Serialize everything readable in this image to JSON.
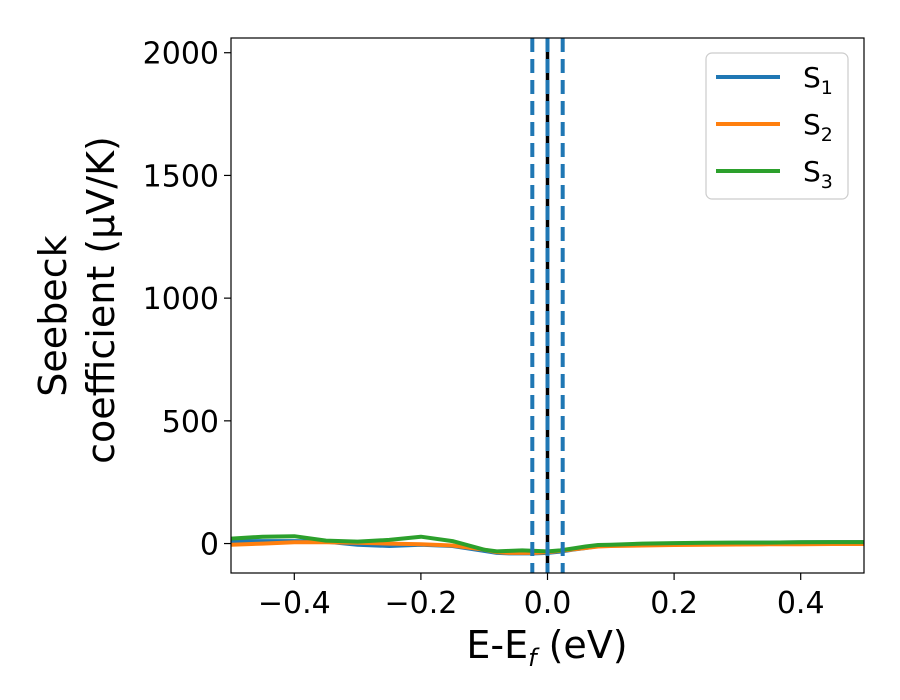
{
  "chart_data": {
    "type": "line",
    "xlabel": {
      "main": "E-E",
      "sub": "f",
      "suffix": " (eV)"
    },
    "ylabel": {
      "line1": "Seebeck",
      "line2": "coefficient  (μV/K)"
    },
    "xlim": [
      -0.5,
      0.5
    ],
    "ylim": [
      -120,
      2060
    ],
    "xticks": [
      -0.4,
      -0.2,
      0.0,
      0.2,
      0.4
    ],
    "xtick_labels": [
      "−0.4",
      "−0.2",
      "0.0",
      "0.2",
      "0.4"
    ],
    "yticks": [
      0,
      500,
      1000,
      1500,
      2000
    ],
    "ytick_labels": [
      "0",
      "500",
      "1000",
      "1500",
      "2000"
    ],
    "grid": false,
    "legend": {
      "position": "top-right"
    },
    "series": [
      {
        "name": "S",
        "sub": "1",
        "color": "#1f77b4",
        "x": [
          -0.5,
          -0.45,
          -0.4,
          -0.35,
          -0.3,
          -0.25,
          -0.2,
          -0.15,
          -0.1,
          -0.08,
          -0.06,
          -0.04,
          -0.02,
          0.0,
          0.02,
          0.04,
          0.06,
          0.08,
          0.1,
          0.15,
          0.2,
          0.25,
          0.3,
          0.35,
          0.4,
          0.45,
          0.5
        ],
        "y": [
          10,
          10,
          10,
          8,
          -5,
          -10,
          -5,
          -10,
          -30,
          -38,
          -40,
          -40,
          -40,
          -38,
          -33,
          -25,
          -18,
          -10,
          -8,
          -5,
          0,
          2,
          3,
          4,
          5,
          6,
          6
        ]
      },
      {
        "name": "S",
        "sub": "2",
        "color": "#ff7f0e",
        "x": [
          -0.5,
          -0.45,
          -0.4,
          -0.35,
          -0.3,
          -0.25,
          -0.2,
          -0.15,
          -0.1,
          -0.08,
          -0.06,
          -0.04,
          -0.02,
          0.0,
          0.02,
          0.04,
          0.06,
          0.08,
          0.1,
          0.15,
          0.2,
          0.25,
          0.3,
          0.35,
          0.4,
          0.45,
          0.5
        ],
        "y": [
          -5,
          0,
          5,
          5,
          3,
          0,
          -3,
          -8,
          -25,
          -35,
          -38,
          -38,
          -38,
          -35,
          -30,
          -24,
          -18,
          -12,
          -10,
          -8,
          -6,
          -5,
          -4,
          -3,
          -3,
          -2,
          -2
        ]
      },
      {
        "name": "S",
        "sub": "3",
        "color": "#2ca02c",
        "x": [
          -0.5,
          -0.45,
          -0.4,
          -0.35,
          -0.3,
          -0.25,
          -0.2,
          -0.15,
          -0.1,
          -0.08,
          -0.06,
          -0.04,
          -0.02,
          0.0,
          0.02,
          0.04,
          0.06,
          0.08,
          0.1,
          0.15,
          0.2,
          0.25,
          0.3,
          0.35,
          0.4,
          0.45,
          0.5
        ],
        "y": [
          20,
          28,
          30,
          12,
          8,
          15,
          28,
          10,
          -25,
          -32,
          -30,
          -28,
          -30,
          -32,
          -28,
          -20,
          -12,
          -6,
          -5,
          0,
          2,
          3,
          4,
          4,
          5,
          6,
          6
        ]
      }
    ],
    "vlines": [
      {
        "x": -0.024,
        "style": "dashed",
        "color": "#1f77b4"
      },
      {
        "x": 0.0,
        "style": "solid",
        "color": "#000000"
      },
      {
        "x": 0.0,
        "style": "dashed",
        "color": "#1f77b4"
      },
      {
        "x": 0.024,
        "style": "dashed",
        "color": "#1f77b4"
      }
    ]
  }
}
